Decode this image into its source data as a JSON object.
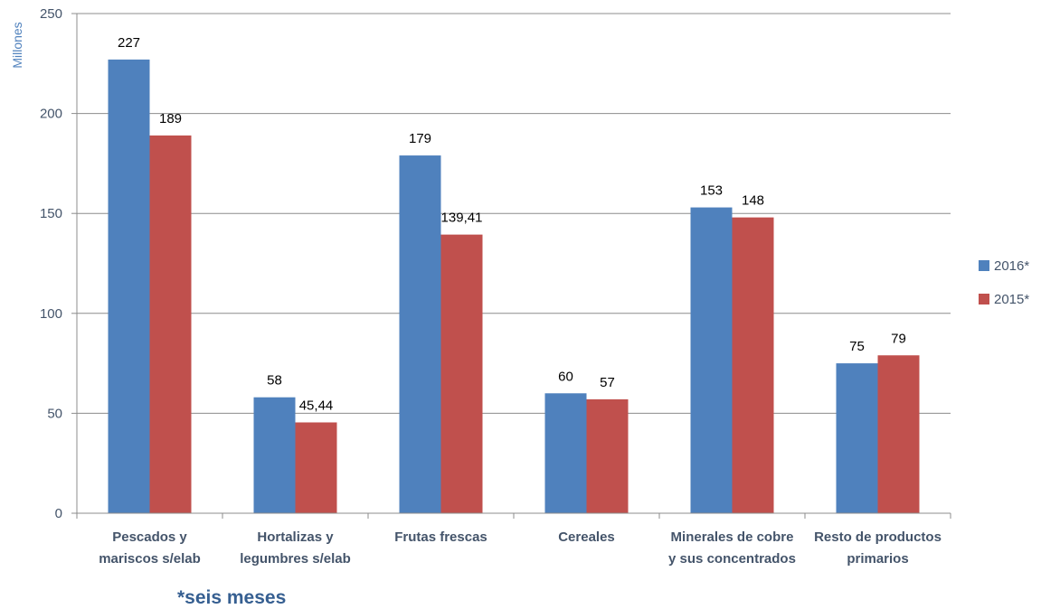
{
  "chart_data": {
    "type": "bar",
    "title": "",
    "ylabel": "Millones",
    "xlabel": "",
    "ylim": [
      0,
      250
    ],
    "yticks": [
      0,
      50,
      100,
      150,
      200,
      250
    ],
    "grid": true,
    "legend_position": "right",
    "categories": [
      [
        "Pescados y",
        "mariscos s/elab"
      ],
      [
        "Hortalizas y",
        "legumbres s/elab"
      ],
      [
        "Frutas frescas"
      ],
      [
        "Cereales"
      ],
      [
        "Minerales de cobre",
        "y sus concentrados"
      ],
      [
        "Resto de productos",
        "primarios"
      ]
    ],
    "series": [
      {
        "name": "2016*",
        "color": "#4f81bd",
        "values": [
          227,
          58,
          179,
          60,
          153,
          75
        ],
        "labels": [
          "227",
          "58",
          "179",
          "60",
          "153",
          "75"
        ]
      },
      {
        "name": "2015*",
        "color": "#c0504d",
        "values": [
          189,
          45.44,
          139.41,
          57,
          148,
          79
        ],
        "labels": [
          "189",
          "45,44",
          "139,41",
          "57",
          "148",
          "79"
        ]
      }
    ]
  },
  "footnote": "*seis meses"
}
